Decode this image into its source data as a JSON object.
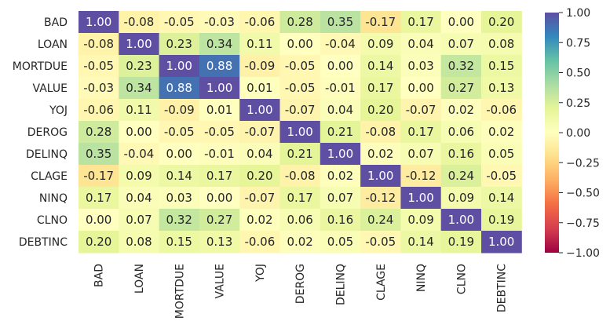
{
  "chart_data": {
    "type": "heatmap",
    "title": "",
    "variables": [
      "BAD",
      "LOAN",
      "MORTDUE",
      "VALUE",
      "YOJ",
      "DEROG",
      "DELINQ",
      "CLAGE",
      "NINQ",
      "CLNO",
      "DEBTINC"
    ],
    "matrix": [
      [
        1.0,
        -0.08,
        -0.05,
        -0.03,
        -0.06,
        0.28,
        0.35,
        -0.17,
        0.17,
        -0.0,
        0.2
      ],
      [
        -0.08,
        1.0,
        0.23,
        0.34,
        0.11,
        -0.0,
        -0.04,
        0.09,
        0.04,
        0.07,
        0.08
      ],
      [
        -0.05,
        0.23,
        1.0,
        0.88,
        -0.09,
        -0.05,
        -0.0,
        0.14,
        0.03,
        0.32,
        0.15
      ],
      [
        -0.03,
        0.34,
        0.88,
        1.0,
        0.01,
        -0.05,
        -0.01,
        0.17,
        -0.0,
        0.27,
        0.13
      ],
      [
        -0.06,
        0.11,
        -0.09,
        0.01,
        1.0,
        -0.07,
        0.04,
        0.2,
        -0.07,
        0.02,
        -0.06
      ],
      [
        0.28,
        -0.0,
        -0.05,
        -0.05,
        -0.07,
        1.0,
        0.21,
        -0.08,
        0.17,
        0.06,
        0.02
      ],
      [
        0.35,
        -0.04,
        -0.0,
        -0.01,
        0.04,
        0.21,
        1.0,
        0.02,
        0.07,
        0.16,
        0.05
      ],
      [
        -0.17,
        0.09,
        0.14,
        0.17,
        0.2,
        -0.08,
        0.02,
        1.0,
        -0.12,
        0.24,
        -0.05
      ],
      [
        0.17,
        0.04,
        0.03,
        -0.0,
        -0.07,
        0.17,
        0.07,
        -0.12,
        1.0,
        0.09,
        0.14
      ],
      [
        -0.0,
        0.07,
        0.32,
        0.27,
        0.02,
        0.06,
        0.16,
        0.24,
        0.09,
        1.0,
        0.19
      ],
      [
        0.2,
        0.08,
        0.15,
        0.13,
        -0.06,
        0.02,
        0.05,
        -0.05,
        0.14,
        0.19,
        1.0
      ]
    ],
    "colorbar": {
      "range": [
        -1.0,
        1.0
      ],
      "ticks": [
        1.0,
        0.75,
        0.5,
        0.25,
        0.0,
        -0.25,
        -0.5,
        -0.75,
        -1.0
      ],
      "tick_labels": [
        "1.00",
        "0.75",
        "0.50",
        "0.25",
        "0.00",
        "−0.25",
        "−0.50",
        "−0.75",
        "−1.00"
      ]
    },
    "colormap": "Spectral",
    "colormap_stops": [
      "#9e0142",
      "#d53e4f",
      "#f46d43",
      "#fdae61",
      "#fee08b",
      "#ffffbf",
      "#e6f598",
      "#abdda4",
      "#66c2a5",
      "#3288bd",
      "#5e4fa2"
    ],
    "annotation_format": "0.00",
    "legend_position": "right"
  }
}
